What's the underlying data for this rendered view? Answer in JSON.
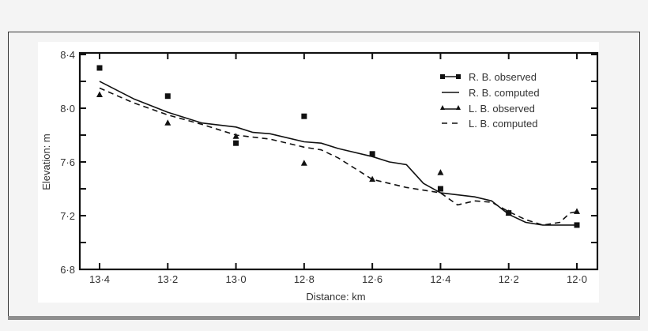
{
  "chart_data": {
    "type": "line",
    "title": "",
    "xlabel": "Distance: km",
    "ylabel": "Elevation: m",
    "x_ticks": [
      "13·4",
      "13·2",
      "13·0",
      "12·8",
      "12·6",
      "12·4",
      "12·2",
      "12·0"
    ],
    "y_ticks": [
      "8·4",
      "8·0",
      "7·6",
      "7·2",
      "6·8"
    ],
    "xlim": [
      13.4,
      12.0
    ],
    "ylim": [
      6.8,
      8.4
    ],
    "x_reversed": true,
    "grid": false,
    "legend_position": "upper right",
    "categories": [
      13.4,
      13.2,
      13.0,
      12.8,
      12.6,
      12.4,
      12.2,
      12.0
    ],
    "series": [
      {
        "name": "R. B. observed",
        "style": "square markers",
        "x": [
          13.4,
          13.2,
          13.0,
          12.8,
          12.6,
          12.4,
          12.2,
          12.0
        ],
        "values": [
          8.3,
          8.09,
          7.74,
          7.94,
          7.66,
          7.4,
          7.22,
          7.13
        ]
      },
      {
        "name": "R. B. computed",
        "style": "solid line",
        "x": [
          13.4,
          13.3,
          13.2,
          13.1,
          13.0,
          12.95,
          12.9,
          12.8,
          12.75,
          12.7,
          12.6,
          12.55,
          12.5,
          12.45,
          12.4,
          12.3,
          12.25,
          12.2,
          12.15,
          12.1,
          12.05,
          12.0
        ],
        "values": [
          8.2,
          8.07,
          7.97,
          7.89,
          7.86,
          7.82,
          7.81,
          7.75,
          7.74,
          7.7,
          7.64,
          7.6,
          7.58,
          7.44,
          7.37,
          7.34,
          7.31,
          7.21,
          7.15,
          7.13,
          7.13,
          7.13
        ]
      },
      {
        "name": "L. B. observed",
        "style": "triangle markers",
        "x": [
          13.4,
          13.2,
          13.0,
          12.8,
          12.6,
          12.4,
          12.2,
          12.0
        ],
        "values": [
          8.1,
          7.89,
          7.79,
          7.59,
          7.47,
          7.52,
          7.22,
          7.23
        ]
      },
      {
        "name": "L. B. computed",
        "style": "dashed line",
        "x": [
          13.4,
          13.3,
          13.2,
          13.1,
          13.0,
          12.9,
          12.8,
          12.75,
          12.7,
          12.65,
          12.6,
          12.5,
          12.4,
          12.35,
          12.3,
          12.25,
          12.2,
          12.15,
          12.1,
          12.05,
          12.02,
          12.0
        ],
        "values": [
          8.15,
          8.04,
          7.95,
          7.88,
          7.8,
          7.77,
          7.71,
          7.69,
          7.63,
          7.55,
          7.47,
          7.41,
          7.37,
          7.28,
          7.31,
          7.3,
          7.23,
          7.17,
          7.13,
          7.15,
          7.22,
          7.23
        ]
      }
    ]
  },
  "legend": {
    "items": [
      {
        "label": "R. B. observed",
        "symbol": "line-square"
      },
      {
        "label": "R. B. computed",
        "symbol": "solid"
      },
      {
        "label": "L. B. observed",
        "symbol": "line-triangle"
      },
      {
        "label": "L. B. computed",
        "symbol": "dashed"
      }
    ]
  },
  "axes": {
    "x_title": "Distance: km",
    "y_title": "Elevation: m"
  }
}
